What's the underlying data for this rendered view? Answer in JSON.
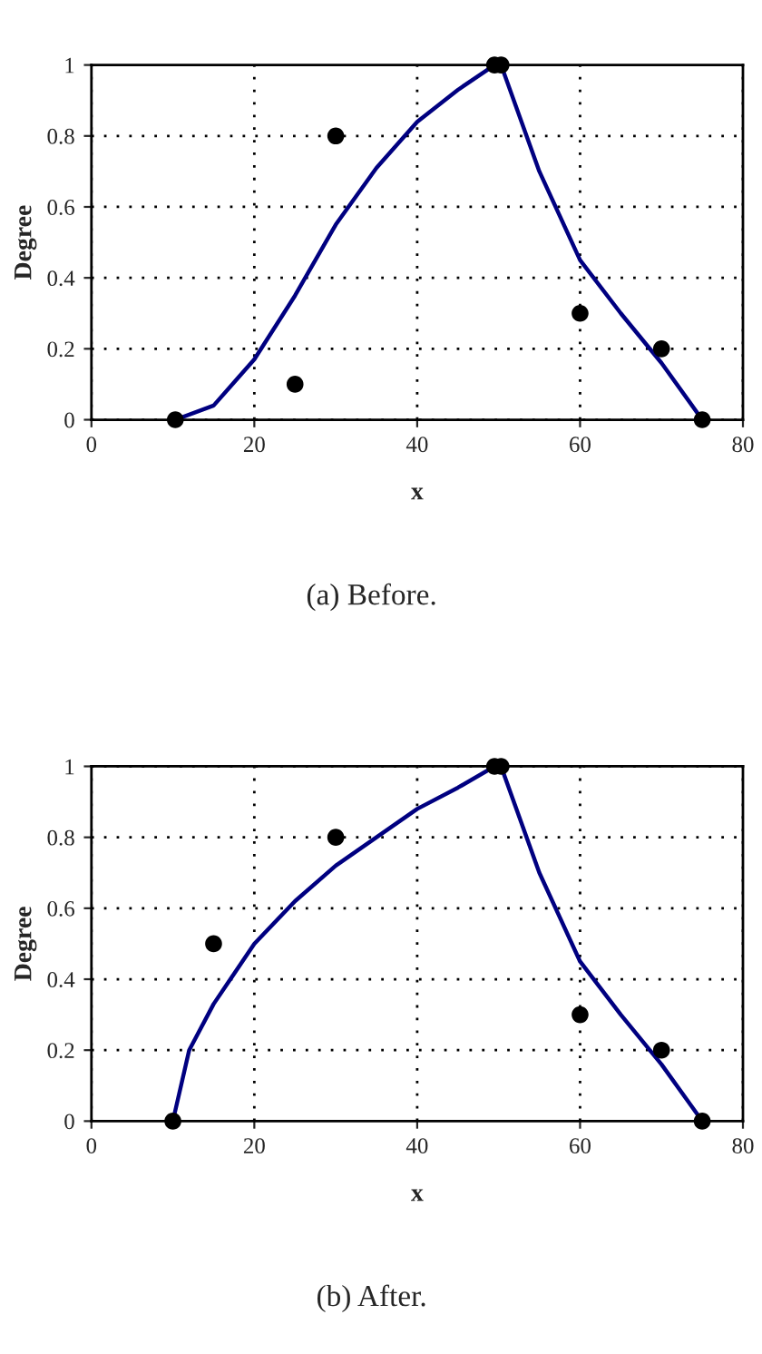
{
  "chart_data": [
    {
      "type": "scatter",
      "xlabel": "x",
      "ylabel": "Degree",
      "annotations": [
        "(a) Before."
      ],
      "xlim": [
        0,
        80
      ],
      "ylim": [
        0,
        1
      ],
      "xticks": [
        0,
        20,
        40,
        60,
        80
      ],
      "yticks": [
        0,
        0.2,
        0.4,
        0.6,
        0.8,
        1
      ],
      "grid": true,
      "legend": false,
      "series": [
        {
          "color": "#000000",
          "marker": "circle",
          "x": [
            10.3,
            25,
            30,
            49.5,
            50.3,
            60,
            70,
            75
          ],
          "values": [
            0,
            0.1,
            0.8,
            1,
            1,
            0.3,
            0.2,
            0
          ]
        },
        {
          "type": "line",
          "color": "#000080",
          "marker": "none",
          "line_style": "solid",
          "x": [
            10.3,
            15,
            20,
            25,
            30,
            35,
            40,
            45,
            49.5,
            50.3,
            55,
            60,
            65,
            70,
            75
          ],
          "values": [
            0,
            0.04,
            0.17,
            0.35,
            0.55,
            0.71,
            0.84,
            0.93,
            1,
            1,
            0.7,
            0.45,
            0.3,
            0.16,
            0
          ]
        }
      ]
    },
    {
      "type": "scatter",
      "xlabel": "x",
      "ylabel": "Degree",
      "annotations": [
        "(b) After."
      ],
      "xlim": [
        0,
        80
      ],
      "ylim": [
        0,
        1
      ],
      "xticks": [
        0,
        20,
        40,
        60,
        80
      ],
      "yticks": [
        0,
        0.2,
        0.4,
        0.6,
        0.8,
        1
      ],
      "grid": true,
      "legend": false,
      "series": [
        {
          "color": "#000000",
          "marker": "circle",
          "x": [
            10,
            15,
            30,
            49.5,
            50.3,
            60,
            70,
            75
          ],
          "values": [
            0,
            0.5,
            0.8,
            1,
            1,
            0.3,
            0.2,
            0
          ]
        },
        {
          "type": "line",
          "color": "#000080",
          "marker": "none",
          "line_style": "solid",
          "x": [
            10,
            12,
            15,
            20,
            25,
            30,
            35,
            40,
            45,
            49.5,
            50.3,
            55,
            60,
            65,
            70,
            75
          ],
          "values": [
            0,
            0.2,
            0.33,
            0.5,
            0.62,
            0.72,
            0.8,
            0.88,
            0.94,
            1,
            1,
            0.7,
            0.45,
            0.3,
            0.16,
            0
          ]
        }
      ]
    }
  ]
}
